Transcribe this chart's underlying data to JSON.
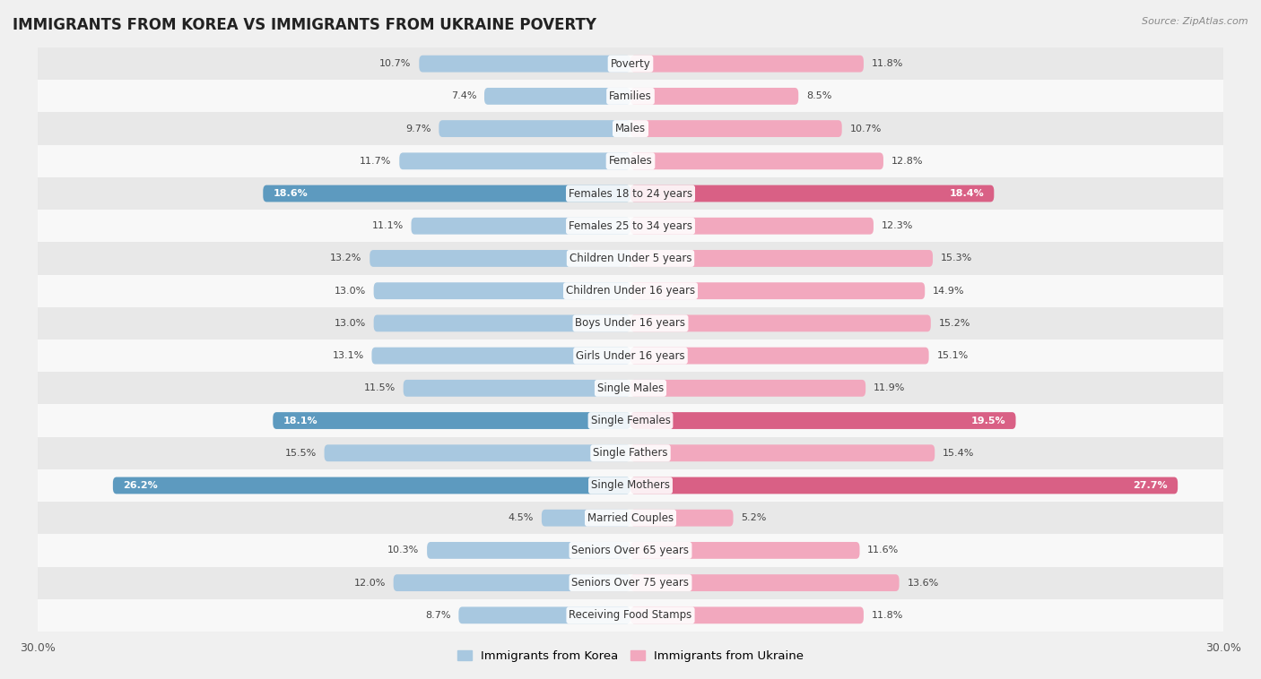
{
  "title": "IMMIGRANTS FROM KOREA VS IMMIGRANTS FROM UKRAINE POVERTY",
  "source": "Source: ZipAtlas.com",
  "categories": [
    "Poverty",
    "Families",
    "Males",
    "Females",
    "Females 18 to 24 years",
    "Females 25 to 34 years",
    "Children Under 5 years",
    "Children Under 16 years",
    "Boys Under 16 years",
    "Girls Under 16 years",
    "Single Males",
    "Single Females",
    "Single Fathers",
    "Single Mothers",
    "Married Couples",
    "Seniors Over 65 years",
    "Seniors Over 75 years",
    "Receiving Food Stamps"
  ],
  "korea_values": [
    10.7,
    7.4,
    9.7,
    11.7,
    18.6,
    11.1,
    13.2,
    13.0,
    13.0,
    13.1,
    11.5,
    18.1,
    15.5,
    26.2,
    4.5,
    10.3,
    12.0,
    8.7
  ],
  "ukraine_values": [
    11.8,
    8.5,
    10.7,
    12.8,
    18.4,
    12.3,
    15.3,
    14.9,
    15.2,
    15.1,
    11.9,
    19.5,
    15.4,
    27.7,
    5.2,
    11.6,
    13.6,
    11.8
  ],
  "korea_color": "#a8c8e0",
  "ukraine_color": "#f2a8be",
  "korea_label": "Immigrants from Korea",
  "ukraine_label": "Immigrants from Ukraine",
  "bar_height": 0.52,
  "bg_color": "#f0f0f0",
  "row_even_color": "#e8e8e8",
  "row_odd_color": "#f8f8f8",
  "highlight_color_korea": "#5d9abf",
  "highlight_color_ukraine": "#d96085",
  "highlight_rows": [
    4,
    11,
    13
  ],
  "title_fontsize": 12,
  "label_fontsize": 8.5,
  "value_fontsize": 8,
  "axis_max": 30.0
}
